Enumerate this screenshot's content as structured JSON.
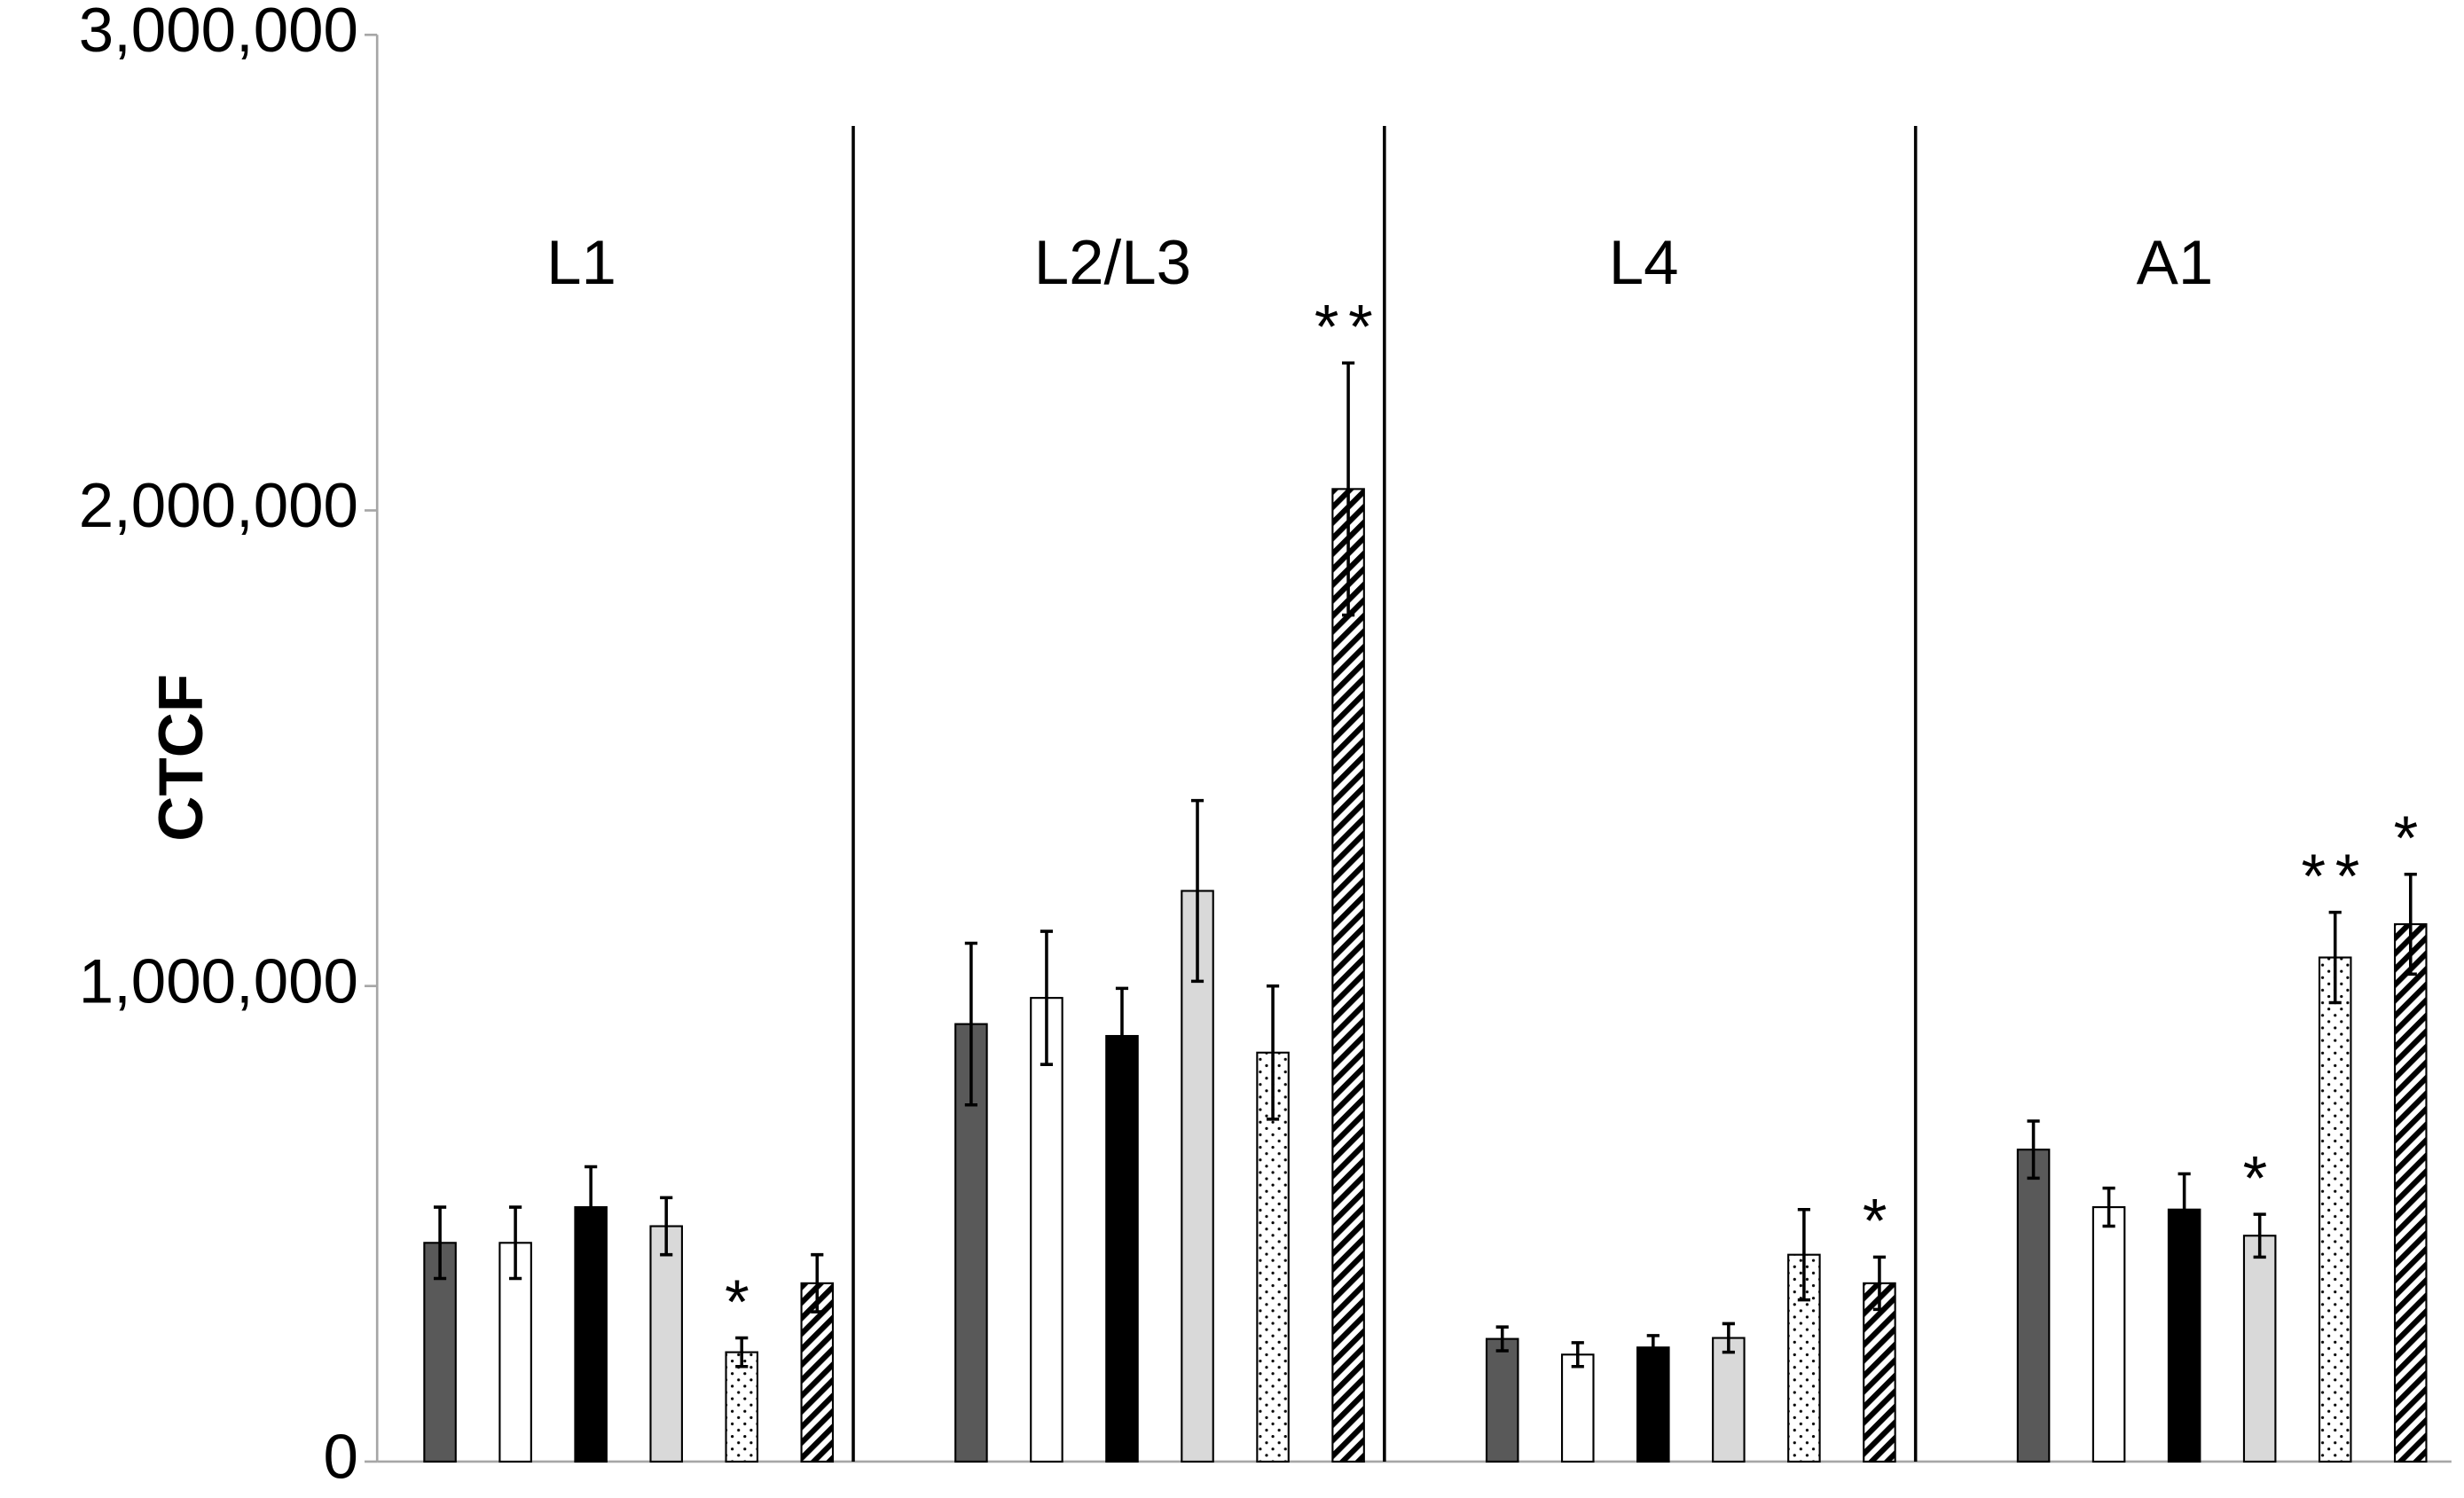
{
  "chart_data": {
    "type": "bar",
    "y_label": "CTCF",
    "categories": [
      "L1",
      "L2/L3",
      "L4",
      "A1"
    ],
    "ylim": [
      0,
      3000000
    ],
    "yticks": [
      {
        "value": 0,
        "label": "0"
      },
      {
        "value": 1000000,
        "label": "1,000,000"
      },
      {
        "value": 2000000,
        "label": "2,000,000"
      },
      {
        "value": 3000000,
        "label": "3,000,000"
      }
    ],
    "series": [
      {
        "color": "#595959",
        "pattern": "solid",
        "values": [
          460000,
          920000,
          258000,
          656000
        ],
        "errors": [
          75000,
          170000,
          25000,
          60000
        ],
        "significance": [
          null,
          null,
          null,
          null
        ]
      },
      {
        "color": "#ffffff",
        "pattern": "solid",
        "values": [
          460000,
          975000,
          225000,
          535000
        ],
        "errors": [
          75000,
          140000,
          25000,
          40000
        ],
        "significance": [
          null,
          null,
          null,
          null
        ]
      },
      {
        "color": "#000000",
        "pattern": "solid",
        "values": [
          535000,
          895000,
          240000,
          530000
        ],
        "errors": [
          85000,
          100000,
          25000,
          75000
        ],
        "significance": [
          null,
          null,
          null,
          null
        ]
      },
      {
        "color": "#d9d9d9",
        "pattern": "solid",
        "values": [
          495000,
          1200000,
          260000,
          475000
        ],
        "errors": [
          60000,
          190000,
          30000,
          45000
        ],
        "significance": [
          null,
          null,
          null,
          "*"
        ]
      },
      {
        "color": "#ffffff",
        "pattern": "dots",
        "values": [
          230000,
          860000,
          435000,
          1060000
        ],
        "errors": [
          30000,
          140000,
          95000,
          95000
        ],
        "significance": [
          "*",
          null,
          null,
          "**"
        ]
      },
      {
        "color": "#000000",
        "pattern": "hatch",
        "values": [
          375000,
          2045000,
          375000,
          1130000
        ],
        "errors": [
          60000,
          265000,
          55000,
          105000
        ],
        "significance": [
          null,
          "**",
          "*",
          "*"
        ]
      }
    ]
  }
}
